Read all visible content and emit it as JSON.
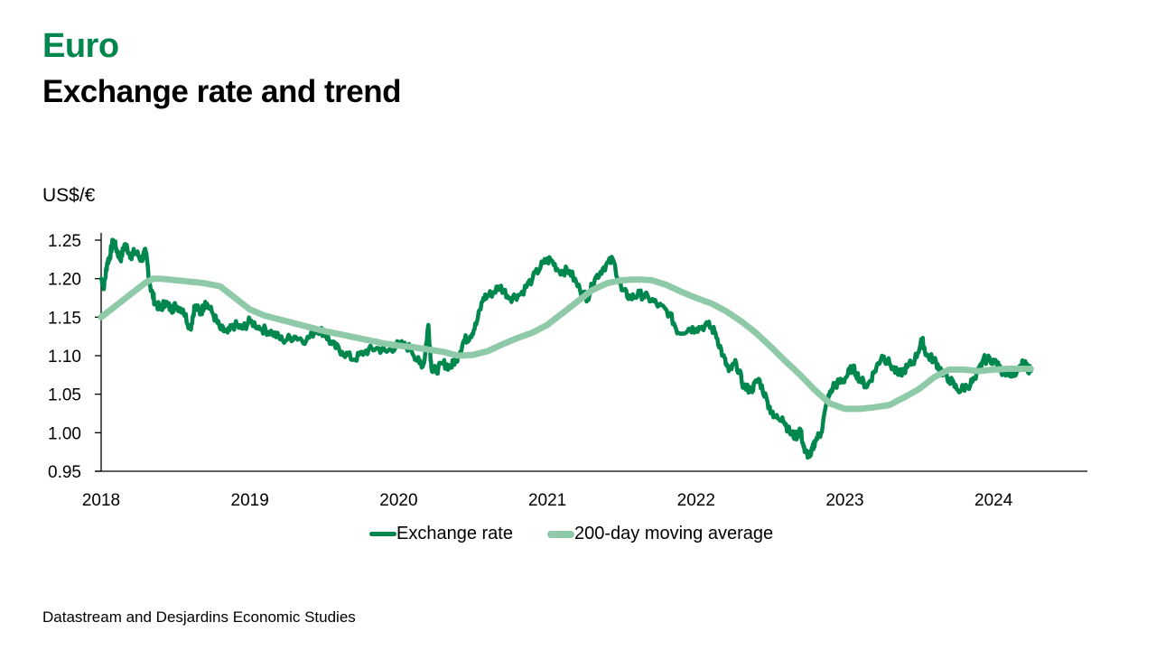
{
  "header": {
    "title": "Euro",
    "subtitle": "Exchange rate and trend"
  },
  "source": "Datastream and Desjardins Economic Studies",
  "colors": {
    "title_accent": "#00874e",
    "exchange_rate": "#00874e",
    "moving_average": "#8fcaa8"
  },
  "chart_data": {
    "type": "line",
    "title": "Euro – Exchange rate and trend",
    "ylabel": "US$/€",
    "xlabel": "",
    "ylim": [
      0.95,
      1.25
    ],
    "xlim": [
      2018.0,
      2024.55
    ],
    "y_ticks": [
      "1.25",
      "1.20",
      "1.15",
      "1.10",
      "1.05",
      "1.00",
      "0.95"
    ],
    "y_tick_values": [
      1.25,
      1.2,
      1.15,
      1.1,
      1.05,
      1.0,
      0.95
    ],
    "x_ticks": [
      "2018",
      "2019",
      "2020",
      "2021",
      "2022",
      "2023",
      "2024"
    ],
    "x_tick_values": [
      2018,
      2019,
      2020,
      2021,
      2022,
      2023,
      2024
    ],
    "grid": false,
    "legend_position": "bottom",
    "series": [
      {
        "name": "Exchange rate",
        "x": [
          2018.0,
          2018.02,
          2018.04,
          2018.06,
          2018.08,
          2018.1,
          2018.13,
          2018.16,
          2018.2,
          2018.23,
          2018.27,
          2018.3,
          2018.33,
          2018.36,
          2018.4,
          2018.43,
          2018.47,
          2018.5,
          2018.55,
          2018.6,
          2018.63,
          2018.67,
          2018.7,
          2018.75,
          2018.8,
          2018.85,
          2018.9,
          2018.95,
          2019.0,
          2019.08,
          2019.15,
          2019.22,
          2019.3,
          2019.38,
          2019.45,
          2019.5,
          2019.55,
          2019.62,
          2019.7,
          2019.77,
          2019.85,
          2019.92,
          2020.0,
          2020.08,
          2020.14,
          2020.17,
          2020.2,
          2020.22,
          2020.25,
          2020.3,
          2020.35,
          2020.4,
          2020.44,
          2020.48,
          2020.52,
          2020.57,
          2020.62,
          2020.68,
          2020.75,
          2020.82,
          2020.9,
          2020.97,
          2021.02,
          2021.08,
          2021.15,
          2021.22,
          2021.27,
          2021.32,
          2021.38,
          2021.44,
          2021.5,
          2021.56,
          2021.62,
          2021.68,
          2021.75,
          2021.82,
          2021.88,
          2021.95,
          2022.0,
          2022.08,
          2022.13,
          2022.18,
          2022.22,
          2022.27,
          2022.32,
          2022.37,
          2022.42,
          2022.48,
          2022.52,
          2022.58,
          2022.63,
          2022.67,
          2022.7,
          2022.73,
          2022.77,
          2022.8,
          2022.84,
          2022.88,
          2022.92,
          2022.96,
          2023.0,
          2023.05,
          2023.1,
          2023.15,
          2023.2,
          2023.25,
          2023.3,
          2023.36,
          2023.42,
          2023.47,
          2023.52,
          2023.55,
          2023.6,
          2023.65,
          2023.7,
          2023.76,
          2023.82,
          2023.88,
          2023.93,
          2024.0,
          2024.05,
          2024.1,
          2024.15,
          2024.2,
          2024.25
        ],
        "values": [
          1.2,
          1.19,
          1.22,
          1.23,
          1.25,
          1.24,
          1.225,
          1.245,
          1.23,
          1.235,
          1.225,
          1.235,
          1.19,
          1.17,
          1.16,
          1.17,
          1.16,
          1.165,
          1.16,
          1.135,
          1.165,
          1.155,
          1.17,
          1.155,
          1.135,
          1.13,
          1.14,
          1.135,
          1.145,
          1.135,
          1.13,
          1.12,
          1.125,
          1.12,
          1.135,
          1.13,
          1.115,
          1.105,
          1.095,
          1.105,
          1.11,
          1.105,
          1.115,
          1.11,
          1.09,
          1.09,
          1.14,
          1.085,
          1.08,
          1.09,
          1.085,
          1.1,
          1.12,
          1.125,
          1.14,
          1.175,
          1.18,
          1.19,
          1.175,
          1.18,
          1.2,
          1.22,
          1.225,
          1.21,
          1.21,
          1.185,
          1.175,
          1.2,
          1.215,
          1.225,
          1.185,
          1.175,
          1.18,
          1.175,
          1.165,
          1.155,
          1.13,
          1.135,
          1.135,
          1.14,
          1.13,
          1.1,
          1.08,
          1.09,
          1.06,
          1.055,
          1.07,
          1.04,
          1.02,
          1.02,
          1.0,
          0.995,
          1.005,
          0.975,
          0.97,
          0.99,
          1.0,
          1.04,
          1.06,
          1.065,
          1.07,
          1.085,
          1.07,
          1.06,
          1.08,
          1.1,
          1.09,
          1.075,
          1.085,
          1.095,
          1.12,
          1.1,
          1.095,
          1.08,
          1.07,
          1.055,
          1.06,
          1.07,
          1.095,
          1.095,
          1.08,
          1.08,
          1.075,
          1.09,
          1.08
        ],
        "color": "#00874e"
      },
      {
        "name": "200-day moving average",
        "x": [
          2018.0,
          2018.1,
          2018.2,
          2018.3,
          2018.35,
          2018.4,
          2018.5,
          2018.6,
          2018.7,
          2018.8,
          2018.9,
          2019.0,
          2019.1,
          2019.2,
          2019.3,
          2019.4,
          2019.5,
          2019.6,
          2019.7,
          2019.8,
          2019.9,
          2020.0,
          2020.1,
          2020.2,
          2020.3,
          2020.4,
          2020.5,
          2020.6,
          2020.7,
          2020.8,
          2020.9,
          2021.0,
          2021.1,
          2021.2,
          2021.3,
          2021.4,
          2021.5,
          2021.6,
          2021.7,
          2021.8,
          2021.9,
          2022.0,
          2022.1,
          2022.2,
          2022.3,
          2022.4,
          2022.5,
          2022.6,
          2022.7,
          2022.8,
          2022.9,
          2023.0,
          2023.1,
          2023.2,
          2023.3,
          2023.4,
          2023.5,
          2023.6,
          2023.7,
          2023.8,
          2023.9,
          2024.0,
          2024.1,
          2024.2,
          2024.25
        ],
        "values": [
          1.15,
          1.165,
          1.18,
          1.195,
          1.2,
          1.2,
          1.198,
          1.196,
          1.194,
          1.19,
          1.175,
          1.16,
          1.152,
          1.147,
          1.142,
          1.137,
          1.132,
          1.128,
          1.124,
          1.12,
          1.116,
          1.113,
          1.111,
          1.108,
          1.105,
          1.1,
          1.101,
          1.106,
          1.115,
          1.123,
          1.13,
          1.14,
          1.155,
          1.17,
          1.185,
          1.194,
          1.198,
          1.199,
          1.198,
          1.192,
          1.183,
          1.175,
          1.168,
          1.158,
          1.145,
          1.13,
          1.112,
          1.093,
          1.075,
          1.055,
          1.038,
          1.031,
          1.031,
          1.033,
          1.036,
          1.046,
          1.057,
          1.072,
          1.082,
          1.082,
          1.08,
          1.082,
          1.083,
          1.083,
          1.083
        ],
        "color": "#8fcaa8"
      }
    ]
  },
  "legend": {
    "items": [
      {
        "label": "Exchange rate"
      },
      {
        "label": "200-day moving average"
      }
    ]
  }
}
